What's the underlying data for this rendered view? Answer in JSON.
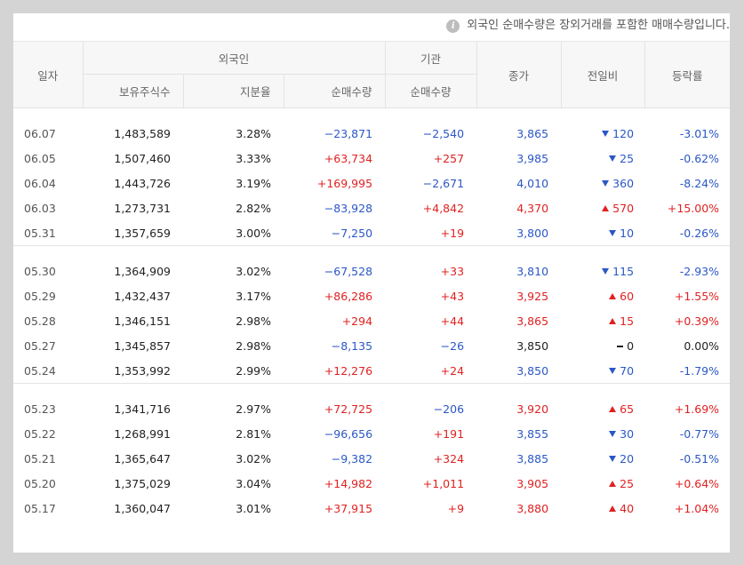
{
  "notice": {
    "text": "외국인 순매수량은 장외거래를 포함한 매매수량입니다.",
    "icon": "info-icon"
  },
  "headers": {
    "date": "일자",
    "foreign": "외국인",
    "institution": "기관",
    "close": "종가",
    "change": "전일비",
    "rate": "등락률",
    "holdings": "보유주식수",
    "ratio": "지분율",
    "foreign_net": "순매수량",
    "inst_net": "순매수량"
  },
  "colors": {
    "up": "#e02121",
    "down": "#2b57c6",
    "flat": "#222222"
  },
  "groups": [
    [
      {
        "date": "06.07",
        "holdings": "1,483,589",
        "ratio": "3.28%",
        "foreign_net": "−23,871",
        "foreign_dir": "down",
        "inst_net": "−2,540",
        "inst_dir": "down",
        "close": "3,865",
        "close_dir": "down",
        "change": "120",
        "change_dir": "down",
        "rate": "-3.01%",
        "rate_dir": "down"
      },
      {
        "date": "06.05",
        "holdings": "1,507,460",
        "ratio": "3.33%",
        "foreign_net": "+63,734",
        "foreign_dir": "up",
        "inst_net": "+257",
        "inst_dir": "up",
        "close": "3,985",
        "close_dir": "down",
        "change": "25",
        "change_dir": "down",
        "rate": "-0.62%",
        "rate_dir": "down"
      },
      {
        "date": "06.04",
        "holdings": "1,443,726",
        "ratio": "3.19%",
        "foreign_net": "+169,995",
        "foreign_dir": "up",
        "inst_net": "−2,671",
        "inst_dir": "down",
        "close": "4,010",
        "close_dir": "down",
        "change": "360",
        "change_dir": "down",
        "rate": "-8.24%",
        "rate_dir": "down"
      },
      {
        "date": "06.03",
        "holdings": "1,273,731",
        "ratio": "2.82%",
        "foreign_net": "−83,928",
        "foreign_dir": "down",
        "inst_net": "+4,842",
        "inst_dir": "up",
        "close": "4,370",
        "close_dir": "up",
        "change": "570",
        "change_dir": "up",
        "rate": "+15.00%",
        "rate_dir": "up"
      },
      {
        "date": "05.31",
        "holdings": "1,357,659",
        "ratio": "3.00%",
        "foreign_net": "−7,250",
        "foreign_dir": "down",
        "inst_net": "+19",
        "inst_dir": "up",
        "close": "3,800",
        "close_dir": "down",
        "change": "10",
        "change_dir": "down",
        "rate": "-0.26%",
        "rate_dir": "down"
      }
    ],
    [
      {
        "date": "05.30",
        "holdings": "1,364,909",
        "ratio": "3.02%",
        "foreign_net": "−67,528",
        "foreign_dir": "down",
        "inst_net": "+33",
        "inst_dir": "up",
        "close": "3,810",
        "close_dir": "down",
        "change": "115",
        "change_dir": "down",
        "rate": "-2.93%",
        "rate_dir": "down"
      },
      {
        "date": "05.29",
        "holdings": "1,432,437",
        "ratio": "3.17%",
        "foreign_net": "+86,286",
        "foreign_dir": "up",
        "inst_net": "+43",
        "inst_dir": "up",
        "close": "3,925",
        "close_dir": "up",
        "change": "60",
        "change_dir": "up",
        "rate": "+1.55%",
        "rate_dir": "up"
      },
      {
        "date": "05.28",
        "holdings": "1,346,151",
        "ratio": "2.98%",
        "foreign_net": "+294",
        "foreign_dir": "up",
        "inst_net": "+44",
        "inst_dir": "up",
        "close": "3,865",
        "close_dir": "up",
        "change": "15",
        "change_dir": "up",
        "rate": "+0.39%",
        "rate_dir": "up"
      },
      {
        "date": "05.27",
        "holdings": "1,345,857",
        "ratio": "2.98%",
        "foreign_net": "−8,135",
        "foreign_dir": "down",
        "inst_net": "−26",
        "inst_dir": "down",
        "close": "3,850",
        "close_dir": "flat",
        "change": "0",
        "change_dir": "flat",
        "rate": "0.00%",
        "rate_dir": "flat"
      },
      {
        "date": "05.24",
        "holdings": "1,353,992",
        "ratio": "2.99%",
        "foreign_net": "+12,276",
        "foreign_dir": "up",
        "inst_net": "+24",
        "inst_dir": "up",
        "close": "3,850",
        "close_dir": "down",
        "change": "70",
        "change_dir": "down",
        "rate": "-1.79%",
        "rate_dir": "down"
      }
    ],
    [
      {
        "date": "05.23",
        "holdings": "1,341,716",
        "ratio": "2.97%",
        "foreign_net": "+72,725",
        "foreign_dir": "up",
        "inst_net": "−206",
        "inst_dir": "down",
        "close": "3,920",
        "close_dir": "up",
        "change": "65",
        "change_dir": "up",
        "rate": "+1.69%",
        "rate_dir": "up"
      },
      {
        "date": "05.22",
        "holdings": "1,268,991",
        "ratio": "2.81%",
        "foreign_net": "−96,656",
        "foreign_dir": "down",
        "inst_net": "+191",
        "inst_dir": "up",
        "close": "3,855",
        "close_dir": "down",
        "change": "30",
        "change_dir": "down",
        "rate": "-0.77%",
        "rate_dir": "down"
      },
      {
        "date": "05.21",
        "holdings": "1,365,647",
        "ratio": "3.02%",
        "foreign_net": "−9,382",
        "foreign_dir": "down",
        "inst_net": "+324",
        "inst_dir": "up",
        "close": "3,885",
        "close_dir": "down",
        "change": "20",
        "change_dir": "down",
        "rate": "-0.51%",
        "rate_dir": "down"
      },
      {
        "date": "05.20",
        "holdings": "1,375,029",
        "ratio": "3.04%",
        "foreign_net": "+14,982",
        "foreign_dir": "up",
        "inst_net": "+1,011",
        "inst_dir": "up",
        "close": "3,905",
        "close_dir": "up",
        "change": "25",
        "change_dir": "up",
        "rate": "+0.64%",
        "rate_dir": "up"
      },
      {
        "date": "05.17",
        "holdings": "1,360,047",
        "ratio": "3.01%",
        "foreign_net": "+37,915",
        "foreign_dir": "up",
        "inst_net": "+9",
        "inst_dir": "up",
        "close": "3,880",
        "close_dir": "up",
        "change": "40",
        "change_dir": "up",
        "rate": "+1.04%",
        "rate_dir": "up"
      }
    ]
  ]
}
